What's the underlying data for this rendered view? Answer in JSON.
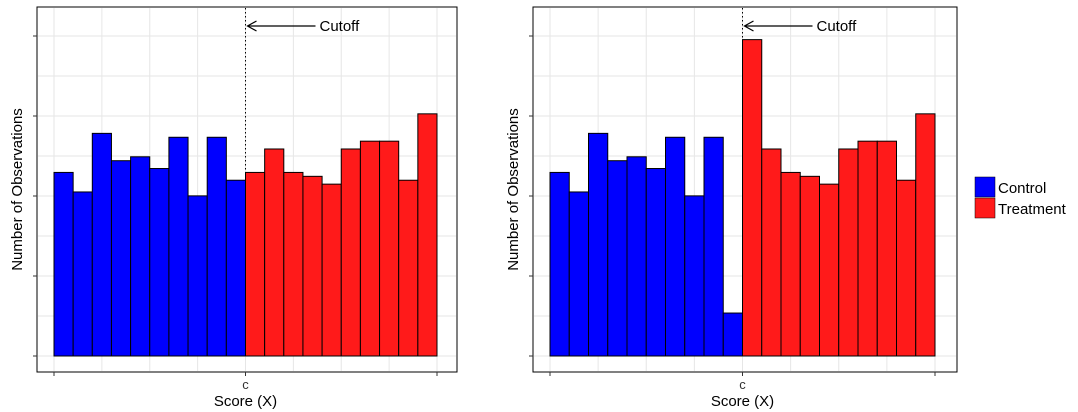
{
  "chart_data": [
    {
      "type": "bar",
      "xlabel": "Score (X)",
      "ylabel": "Number of Observations",
      "x_tick_label": "c",
      "annotation": "Cutoff",
      "cutoff_bin": 10,
      "ylim": [
        0,
        85
      ],
      "grid": true,
      "series": [
        {
          "name": "Control",
          "values": [
            47,
            42,
            57,
            50,
            51,
            48,
            56,
            41,
            56,
            45
          ]
        },
        {
          "name": "Treatment",
          "values": [
            47,
            53,
            47,
            46,
            44,
            53,
            55,
            55,
            45,
            62
          ]
        }
      ]
    },
    {
      "type": "bar",
      "xlabel": "Score (X)",
      "ylabel": "Number of Observations",
      "x_tick_label": "c",
      "annotation": "Cutoff",
      "cutoff_bin": 10,
      "ylim": [
        0,
        85
      ],
      "grid": true,
      "series": [
        {
          "name": "Control",
          "values": [
            47,
            42,
            57,
            50,
            51,
            48,
            56,
            41,
            56,
            11
          ]
        },
        {
          "name": "Treatment",
          "values": [
            81,
            53,
            47,
            46,
            44,
            53,
            55,
            55,
            45,
            62
          ]
        }
      ]
    }
  ],
  "legend": {
    "placement": "right",
    "items": [
      {
        "label": "Control",
        "color": "#0000ff"
      },
      {
        "label": "Treatment",
        "color": "#ff1a1a"
      }
    ]
  },
  "colors": {
    "control": "#0000ff",
    "treatment": "#ff1a1a",
    "grid": "#e6e6e6"
  }
}
